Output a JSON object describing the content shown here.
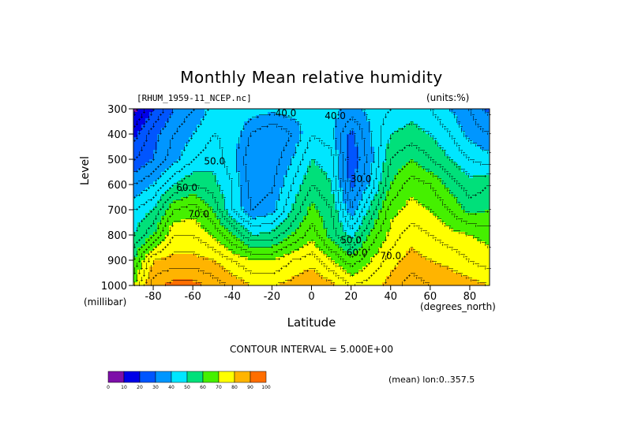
{
  "title": "Monthly Mean relative humidity",
  "dataset": "[RHUM_1959-11_NCEP.nc]",
  "units": "(units:%)",
  "contour_interval": "CONTOUR INTERVAL = 5.000E+00",
  "mean_note": "(mean) lon:0..357.5",
  "colors": {
    "levels": [
      0,
      10,
      20,
      30,
      40,
      50,
      60,
      70,
      80,
      90,
      100
    ],
    "fills": [
      "#7d0fa8",
      "#0000e8",
      "#0055ff",
      "#0096ff",
      "#00e6ff",
      "#00e07a",
      "#45f000",
      "#ffff00",
      "#ffb400",
      "#ff6e00",
      "#ff0000"
    ]
  },
  "chart_data": {
    "type": "heatmap",
    "title": "Monthly Mean relative humidity",
    "xlabel": "Latitude",
    "xunit": "(degrees_north)",
    "ylabel": "Level",
    "yunit": "(millibar)",
    "xlim": [
      -90,
      90
    ],
    "ylim": [
      1000,
      300
    ],
    "xticks": [
      -80,
      -60,
      -40,
      -20,
      0,
      20,
      40,
      60,
      80
    ],
    "yticks": [
      300,
      400,
      500,
      600,
      700,
      800,
      900,
      1000
    ],
    "contour_labels": [
      "40.0",
      "40.0",
      "50.0",
      "30.0",
      "60.0",
      "70.0",
      "50.0",
      "60.0",
      "70.0"
    ],
    "x": [
      -90,
      -80,
      -70,
      -60,
      -50,
      -40,
      -30,
      -20,
      -10,
      0,
      10,
      20,
      30,
      40,
      50,
      60,
      70,
      80,
      90
    ],
    "levels": [
      300,
      400,
      500,
      600,
      700,
      800,
      900,
      1000
    ],
    "values": [
      [
        8,
        20,
        30,
        35,
        42,
        45,
        43,
        42,
        43,
        40,
        42,
        38,
        42,
        45,
        48,
        45,
        40,
        35,
        28
      ],
      [
        18,
        28,
        35,
        40,
        45,
        44,
        34,
        30,
        35,
        45,
        42,
        28,
        40,
        50,
        52,
        50,
        45,
        38,
        35
      ],
      [
        25,
        30,
        38,
        45,
        48,
        42,
        30,
        32,
        40,
        50,
        47,
        25,
        38,
        55,
        60,
        55,
        50,
        45,
        42
      ],
      [
        35,
        40,
        50,
        55,
        52,
        45,
        32,
        34,
        45,
        55,
        50,
        28,
        42,
        60,
        68,
        65,
        58,
        52,
        55
      ],
      [
        45,
        50,
        65,
        68,
        60,
        45,
        35,
        38,
        50,
        62,
        55,
        36,
        52,
        68,
        72,
        70,
        65,
        58,
        60
      ],
      [
        50,
        60,
        75,
        75,
        70,
        60,
        50,
        52,
        60,
        68,
        58,
        48,
        62,
        72,
        78,
        75,
        72,
        70,
        68
      ],
      [
        60,
        80,
        82,
        82,
        80,
        75,
        70,
        70,
        75,
        78,
        70,
        62,
        70,
        78,
        82,
        80,
        78,
        75,
        72
      ],
      [
        70,
        88,
        92,
        92,
        88,
        84,
        80,
        80,
        82,
        85,
        82,
        75,
        78,
        82,
        88,
        85,
        84,
        82,
        80
      ]
    ]
  }
}
